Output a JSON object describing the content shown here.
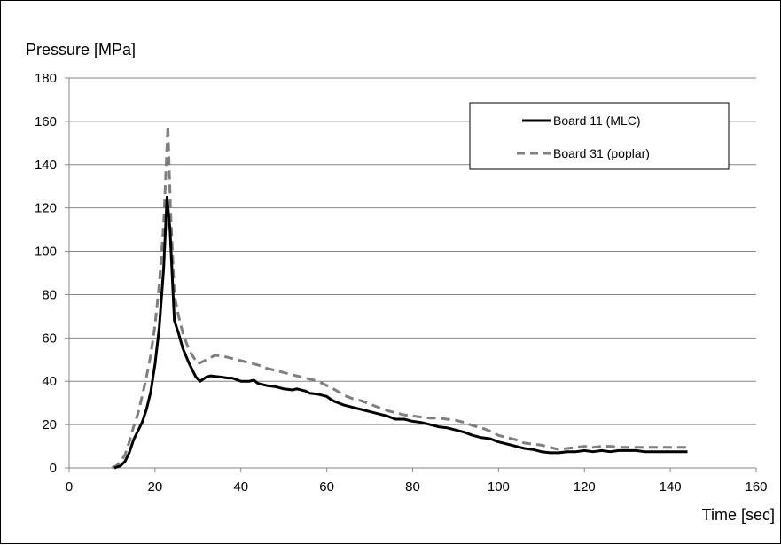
{
  "chart_data": {
    "type": "line",
    "title": "",
    "ylabel": "Pressure [MPa]",
    "xlabel": "Time [sec]",
    "xlim": [
      0,
      160
    ],
    "ylim": [
      0,
      180
    ],
    "x_ticks": [
      "0",
      "20",
      "40",
      "60",
      "80",
      "100",
      "120",
      "140",
      "160"
    ],
    "y_ticks": [
      "0",
      "20",
      "40",
      "60",
      "80",
      "100",
      "120",
      "140",
      "160",
      "180"
    ],
    "grid": true,
    "legend_position": "top-right",
    "series": [
      {
        "name": "Board 11 (MLC)",
        "color": "#000000",
        "style": "solid",
        "points": [
          [
            10.5,
            0
          ],
          [
            12,
            1
          ],
          [
            13,
            3
          ],
          [
            14,
            7
          ],
          [
            15,
            13
          ],
          [
            16,
            17
          ],
          [
            17,
            21
          ],
          [
            18,
            27
          ],
          [
            19,
            35
          ],
          [
            20,
            48
          ],
          [
            21,
            65
          ],
          [
            22,
            92
          ],
          [
            22.8,
            125
          ],
          [
            23.5,
            110
          ],
          [
            24.5,
            68
          ],
          [
            25.5,
            62
          ],
          [
            26.5,
            55
          ],
          [
            28,
            48
          ],
          [
            29.5,
            42
          ],
          [
            30.5,
            40
          ],
          [
            32,
            42
          ],
          [
            33,
            42.5
          ],
          [
            35,
            42
          ],
          [
            37,
            41.5
          ],
          [
            38,
            41.5
          ],
          [
            40,
            40
          ],
          [
            42,
            40
          ],
          [
            43,
            40.5
          ],
          [
            44,
            39
          ],
          [
            46,
            38
          ],
          [
            48,
            37.5
          ],
          [
            50,
            36.5
          ],
          [
            52,
            36
          ],
          [
            53,
            36.5
          ],
          [
            55,
            35.5
          ],
          [
            56,
            34.5
          ],
          [
            58,
            34
          ],
          [
            60,
            33
          ],
          [
            61,
            31.5
          ],
          [
            62,
            30.5
          ],
          [
            64,
            29
          ],
          [
            66,
            28
          ],
          [
            68,
            27
          ],
          [
            70,
            26
          ],
          [
            72,
            25
          ],
          [
            74,
            24
          ],
          [
            76,
            22.5
          ],
          [
            78,
            22.5
          ],
          [
            80,
            21.5
          ],
          [
            82,
            21
          ],
          [
            84,
            20
          ],
          [
            86,
            19
          ],
          [
            88,
            18.5
          ],
          [
            90,
            17.5
          ],
          [
            92,
            16.5
          ],
          [
            94,
            15
          ],
          [
            96,
            14
          ],
          [
            98,
            13.5
          ],
          [
            100,
            12
          ],
          [
            102,
            11
          ],
          [
            104,
            10
          ],
          [
            106,
            9
          ],
          [
            108,
            8.5
          ],
          [
            110,
            7.5
          ],
          [
            112,
            7
          ],
          [
            114,
            7
          ],
          [
            116,
            7.5
          ],
          [
            118,
            7.5
          ],
          [
            120,
            8
          ],
          [
            122,
            7.5
          ],
          [
            124,
            8
          ],
          [
            126,
            7.5
          ],
          [
            128,
            8
          ],
          [
            130,
            8
          ],
          [
            132,
            8
          ],
          [
            134,
            7.5
          ],
          [
            136,
            7.5
          ],
          [
            138,
            7.5
          ],
          [
            140,
            7.5
          ],
          [
            142,
            7.5
          ],
          [
            144,
            7.5
          ]
        ]
      },
      {
        "name": "Board 31 (poplar)",
        "color": "#7f7f7f",
        "style": "dashed",
        "points": [
          [
            10,
            0
          ],
          [
            11,
            1
          ],
          [
            12,
            3
          ],
          [
            13,
            6
          ],
          [
            14,
            12
          ],
          [
            15,
            19
          ],
          [
            16,
            25
          ],
          [
            17,
            33
          ],
          [
            18,
            42
          ],
          [
            19,
            52
          ],
          [
            20,
            66
          ],
          [
            21,
            85
          ],
          [
            22,
            112
          ],
          [
            22.6,
            140
          ],
          [
            23,
            158
          ],
          [
            23.6,
            120
          ],
          [
            24.5,
            80
          ],
          [
            25.5,
            70
          ],
          [
            26.5,
            62
          ],
          [
            28,
            54
          ],
          [
            30,
            48
          ],
          [
            32,
            50
          ],
          [
            34,
            52
          ],
          [
            36,
            51.5
          ],
          [
            38,
            50.5
          ],
          [
            40,
            49.5
          ],
          [
            42,
            48.5
          ],
          [
            44,
            47.5
          ],
          [
            46,
            46
          ],
          [
            48,
            45
          ],
          [
            50,
            44
          ],
          [
            52,
            43
          ],
          [
            54,
            42
          ],
          [
            56,
            41
          ],
          [
            58,
            40
          ],
          [
            60,
            38
          ],
          [
            62,
            36
          ],
          [
            64,
            33.5
          ],
          [
            66,
            32
          ],
          [
            68,
            31
          ],
          [
            70,
            29.5
          ],
          [
            72,
            28
          ],
          [
            74,
            26.5
          ],
          [
            76,
            25.5
          ],
          [
            78,
            24.5
          ],
          [
            80,
            24
          ],
          [
            82,
            23.5
          ],
          [
            84,
            23
          ],
          [
            86,
            23
          ],
          [
            88,
            22.5
          ],
          [
            90,
            22
          ],
          [
            92,
            21
          ],
          [
            94,
            19.5
          ],
          [
            96,
            18.5
          ],
          [
            98,
            17
          ],
          [
            100,
            15
          ],
          [
            102,
            14
          ],
          [
            104,
            13
          ],
          [
            106,
            11.5
          ],
          [
            108,
            11
          ],
          [
            110,
            10.5
          ],
          [
            112,
            9.5
          ],
          [
            114,
            8.5
          ],
          [
            116,
            9
          ],
          [
            118,
            9.5
          ],
          [
            120,
            10
          ],
          [
            122,
            9.5
          ],
          [
            124,
            10
          ],
          [
            126,
            10
          ],
          [
            128,
            9.5
          ],
          [
            130,
            9.5
          ],
          [
            132,
            9.5
          ],
          [
            134,
            9.5
          ],
          [
            136,
            9.5
          ],
          [
            138,
            9.5
          ],
          [
            140,
            9.5
          ],
          [
            142,
            9.5
          ],
          [
            144,
            9.5
          ]
        ]
      }
    ]
  }
}
